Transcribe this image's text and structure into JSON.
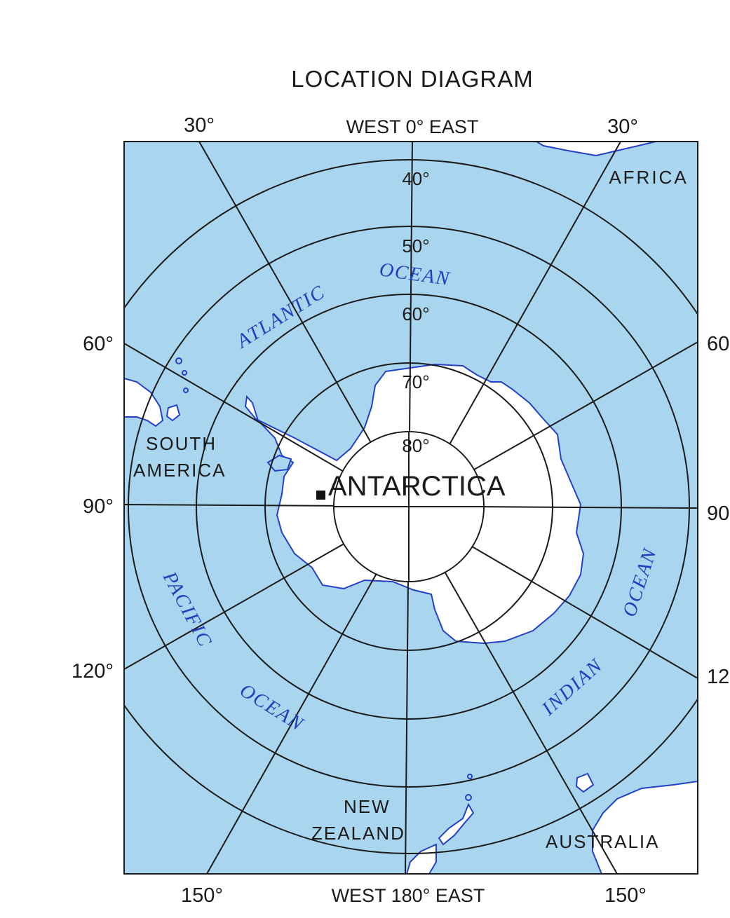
{
  "title": "LOCATION DIAGRAM",
  "top_labels": {
    "left": "30°",
    "center": "WEST 0° EAST",
    "right": "30°"
  },
  "bottom_labels": {
    "left": "150°",
    "center": "WEST 180° EAST",
    "right": "150°"
  },
  "left_labels": {
    "l60": "60°",
    "l90": "90°",
    "l120": "120°"
  },
  "right_labels": {
    "r60": "60",
    "r90": "90",
    "r120": "12"
  },
  "latitude_labels": {
    "lat40": "40°",
    "lat50": "50°",
    "lat60": "60°",
    "lat70": "70°",
    "lat80": "80°"
  },
  "regions": {
    "africa": "AFRICA",
    "south_america_1": "SOUTH",
    "south_america_2": "AMERICA",
    "antarctica": "ANTARCTICA",
    "new_zealand_1": "NEW",
    "new_zealand_2": "ZEALAND",
    "australia": "AUSTRALIA"
  },
  "oceans": {
    "atlantic_1": "ATLANTIC",
    "atlantic_2": "OCEAN",
    "pacific_1": "PACIFIC",
    "pacific_2": "OCEAN",
    "indian_1": "INDIAN",
    "indian_2": "OCEAN"
  },
  "colors": {
    "ocean": "#a9d6ee",
    "land": "#ffffff",
    "grid": "#1a1a1a",
    "coast": "#2340c8",
    "ocean_text": "#1f3fbf"
  }
}
